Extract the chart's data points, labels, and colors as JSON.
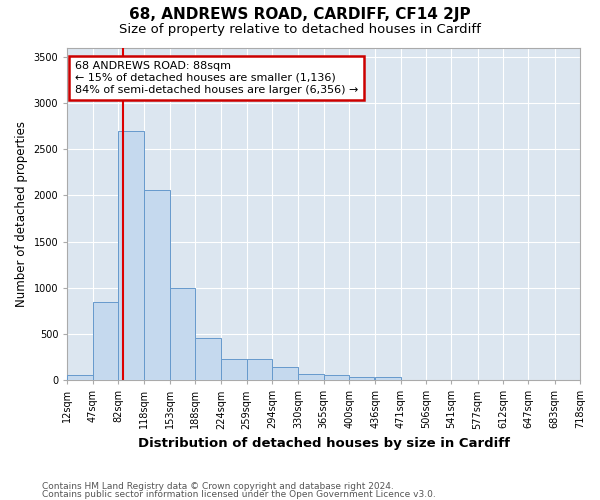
{
  "title1": "68, ANDREWS ROAD, CARDIFF, CF14 2JP",
  "title2": "Size of property relative to detached houses in Cardiff",
  "xlabel": "Distribution of detached houses by size in Cardiff",
  "ylabel": "Number of detached properties",
  "footer1": "Contains HM Land Registry data © Crown copyright and database right 2024.",
  "footer2": "Contains public sector information licensed under the Open Government Licence v3.0.",
  "annotation_line1": "68 ANDREWS ROAD: 88sqm",
  "annotation_line2": "← 15% of detached houses are smaller (1,136)",
  "annotation_line3": "84% of semi-detached houses are larger (6,356) →",
  "property_size": 88,
  "bar_color": "#c5d9ee",
  "bar_edge_color": "#6699cc",
  "vline_color": "#dd0000",
  "annotation_box_color": "#cc0000",
  "background_color": "#dce6f0",
  "bin_edges": [
    12,
    47,
    82,
    118,
    153,
    188,
    224,
    259,
    294,
    330,
    365,
    400,
    436,
    471,
    506,
    541,
    577,
    612,
    647,
    683,
    718
  ],
  "bin_counts": [
    60,
    850,
    2700,
    2060,
    1000,
    455,
    230,
    230,
    140,
    65,
    55,
    35,
    30,
    0,
    0,
    0,
    0,
    0,
    0,
    0
  ],
  "ylim": [
    0,
    3600
  ],
  "yticks": [
    0,
    500,
    1000,
    1500,
    2000,
    2500,
    3000,
    3500
  ],
  "grid_color": "#ffffff",
  "title1_fontsize": 11,
  "title2_fontsize": 9.5,
  "annotation_fontsize": 8,
  "axis_label_fontsize": 8.5,
  "tick_fontsize": 7,
  "footer_fontsize": 6.5
}
